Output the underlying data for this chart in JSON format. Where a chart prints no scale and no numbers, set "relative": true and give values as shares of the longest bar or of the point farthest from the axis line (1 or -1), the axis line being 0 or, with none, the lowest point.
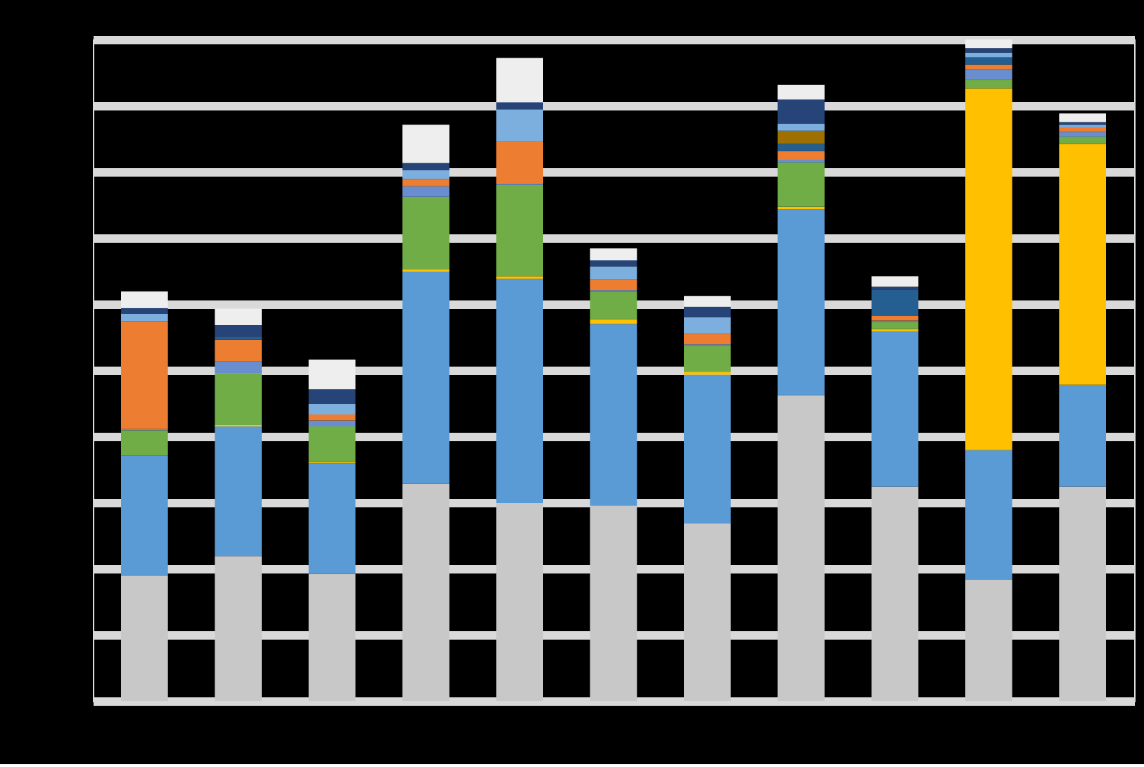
{
  "chart_data": {
    "type": "bar",
    "stacked": true,
    "relative": true,
    "grid": "y",
    "categories": [
      null,
      null,
      null,
      null,
      null,
      null,
      null,
      null,
      null,
      null,
      null
    ],
    "series": [
      {
        "color": "#c8c8c8",
        "values": [
          0.19,
          0.219,
          0.192,
          0.328,
          0.299,
          0.295,
          0.268,
          0.462,
          0.324,
          0.183,
          0.324
        ]
      },
      {
        "color": "#5b9bd5",
        "values": [
          0.181,
          0.196,
          0.167,
          0.321,
          0.339,
          0.275,
          0.225,
          0.281,
          0.234,
          0.196,
          0.154
        ]
      },
      {
        "color": "#ffc000",
        "values": [
          0,
          0.002,
          0.002,
          0.004,
          0.004,
          0.007,
          0.004,
          0.004,
          0.004,
          0.547,
          0.364
        ]
      },
      {
        "color": "#70ad47",
        "values": [
          0.038,
          0.078,
          0.054,
          0.109,
          0.138,
          0.042,
          0.04,
          0.067,
          0.011,
          0.013,
          0.011
        ]
      },
      {
        "color": "#698ed0",
        "values": [
          0.002,
          0.018,
          0.009,
          0.016,
          0.002,
          0.002,
          0.002,
          0.004,
          0.002,
          0.016,
          0.007
        ]
      },
      {
        "color": "#ed7d31",
        "values": [
          0.163,
          0.033,
          0.009,
          0.011,
          0.063,
          0.016,
          0.016,
          0.013,
          0.007,
          0.007,
          0.007
        ]
      },
      {
        "color": "#255e91",
        "values": [
          0,
          0.004,
          0,
          0,
          0,
          0,
          0,
          0.011,
          0.04,
          0.011,
          0
        ]
      },
      {
        "color": "#9e7000",
        "values": [
          0,
          0,
          0,
          0,
          0,
          0,
          0,
          0.02,
          0,
          0,
          0
        ]
      },
      {
        "color": "#7cafdd",
        "values": [
          0.011,
          0,
          0.016,
          0.013,
          0.049,
          0.02,
          0.025,
          0.011,
          0,
          0.007,
          0.004
        ]
      },
      {
        "color": "#264478",
        "values": [
          0.009,
          0.018,
          0.022,
          0.011,
          0.011,
          0.009,
          0.016,
          0.036,
          0.004,
          0.007,
          0.004
        ]
      },
      {
        "color": "#eeeeee",
        "values": [
          0.025,
          0.025,
          0.045,
          0.058,
          0.067,
          0.018,
          0.016,
          0.022,
          0.016,
          0.013,
          0.013
        ]
      }
    ]
  }
}
